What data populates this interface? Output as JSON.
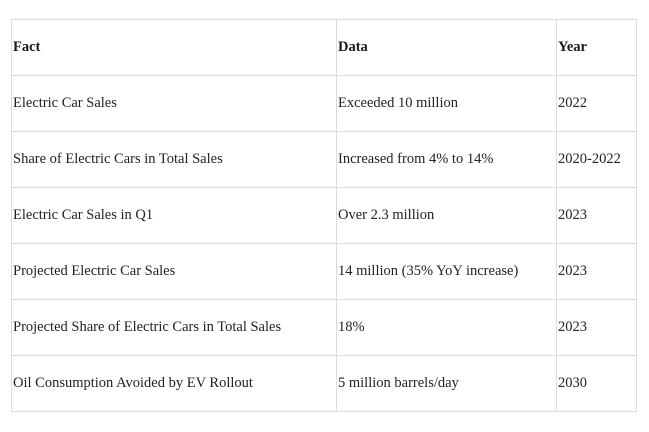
{
  "table": {
    "headers": [
      "Fact",
      "Data",
      "Year"
    ],
    "rows": [
      [
        "Electric Car Sales",
        "Exceeded 10 million",
        "2022"
      ],
      [
        "Share of Electric Cars in Total Sales",
        "Increased from 4% to 14%",
        "2020-2022"
      ],
      [
        "Electric Car Sales in Q1",
        "Over 2.3 million",
        "2023"
      ],
      [
        "Projected Electric Car Sales",
        "14 million (35% YoY increase)",
        "2023"
      ],
      [
        "Projected Share of Electric Cars in Total Sales",
        "18%",
        "2023"
      ],
      [
        "Oil Consumption Avoided by EV Rollout",
        "5 million barrels/day",
        "2030"
      ]
    ]
  }
}
